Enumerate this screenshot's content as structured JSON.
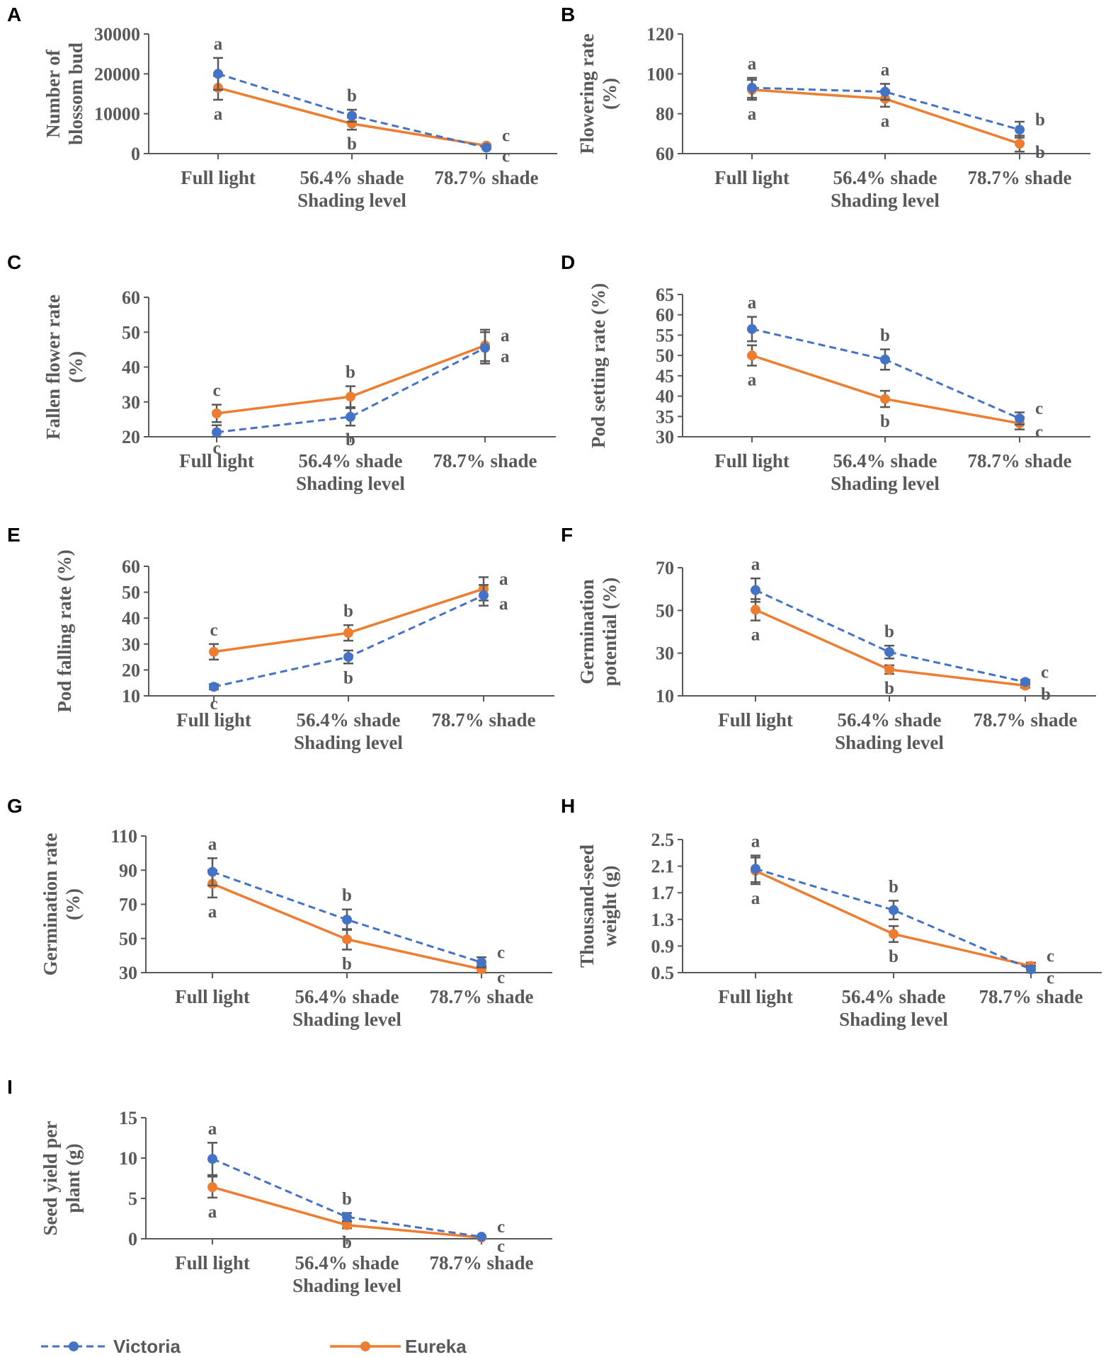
{
  "legend": {
    "victoria": "Victoria",
    "eureka": "Eureka"
  },
  "colors": {
    "victoria": "#4472C4",
    "eureka": "#ED7D31",
    "axis": "#595959",
    "error": "#595959"
  },
  "chart_data": [
    {
      "panel": "A",
      "type": "line",
      "ylabel": [
        "Number of",
        "blossom bud"
      ],
      "xlabel": "Shading level",
      "categories": [
        "Full light",
        "56.4% shade",
        "78.7% shade"
      ],
      "ylim": [
        0,
        30000
      ],
      "yticks": [
        0,
        10000,
        20000,
        30000
      ],
      "ytick_labels": [
        "0",
        "10000",
        "20000",
        "30000"
      ],
      "series": [
        {
          "name": "Victoria",
          "values": [
            20000,
            9500,
            1500
          ],
          "errors": [
            4000,
            1500,
            300
          ],
          "letters": [
            "a",
            "b",
            "c"
          ]
        },
        {
          "name": "Eureka",
          "values": [
            16500,
            7500,
            2000
          ],
          "errors": [
            3000,
            1500,
            300
          ],
          "letters": [
            "a",
            "b",
            "c"
          ]
        }
      ]
    },
    {
      "panel": "B",
      "type": "line",
      "ylabel": [
        "Flowering rate",
        "(%)"
      ],
      "xlabel": "Shading level",
      "categories": [
        "Full light",
        "56.4% shade",
        "78.7% shade"
      ],
      "ylim": [
        60,
        120
      ],
      "yticks": [
        60,
        80,
        100,
        120
      ],
      "ytick_labels": [
        "60",
        "80",
        "100",
        "120"
      ],
      "series": [
        {
          "name": "Victoria",
          "values": [
            93,
            91,
            72
          ],
          "errors": [
            5,
            4,
            4
          ],
          "letters": [
            "a",
            "a",
            "b"
          ]
        },
        {
          "name": "Eureka",
          "values": [
            92,
            87.5,
            65
          ],
          "errors": [
            5,
            4,
            4
          ],
          "letters": [
            "a",
            "a",
            "b"
          ]
        }
      ]
    },
    {
      "panel": "C",
      "type": "line",
      "ylabel": [
        "Fallen flower rate",
        "(%)"
      ],
      "xlabel": "Shading level",
      "categories": [
        "Full light",
        "56.4% shade",
        "78.7% shade"
      ],
      "ylim": [
        20,
        60
      ],
      "yticks": [
        20,
        30,
        40,
        50,
        60
      ],
      "ytick_labels": [
        "20",
        "30",
        "40",
        "50",
        "60"
      ],
      "series": [
        {
          "name": "Victoria",
          "values": [
            21.3,
            25.7,
            45.5
          ],
          "errors": [
            2,
            2.5,
            4.5
          ],
          "letters": [
            "c",
            "b",
            "a"
          ]
        },
        {
          "name": "Eureka",
          "values": [
            26.7,
            31.5,
            46.2
          ],
          "errors": [
            2.5,
            3,
            4.5
          ],
          "letters": [
            "c",
            "b",
            "a"
          ]
        }
      ]
    },
    {
      "panel": "D",
      "type": "line",
      "ylabel": [
        "Pod setting rate (%)"
      ],
      "xlabel": "Shading level",
      "categories": [
        "Full light",
        "56.4% shade",
        "78.7% shade"
      ],
      "ylim": [
        30,
        65
      ],
      "yticks": [
        30,
        35,
        40,
        45,
        50,
        55,
        60,
        65
      ],
      "ytick_labels": [
        "30",
        "35",
        "40",
        "45",
        "50",
        "55",
        "60",
        "65"
      ],
      "series": [
        {
          "name": "Victoria",
          "values": [
            56.5,
            49,
            34.5
          ],
          "errors": [
            3,
            2.5,
            1.5
          ],
          "letters": [
            "a",
            "b",
            "c"
          ]
        },
        {
          "name": "Eureka",
          "values": [
            50,
            39.3,
            33.3
          ],
          "errors": [
            2.5,
            2,
            1.5
          ],
          "letters": [
            "a",
            "b",
            "c"
          ]
        }
      ]
    },
    {
      "panel": "E",
      "type": "line",
      "ylabel": [
        "Pod falling rate (%)"
      ],
      "xlabel": "Shading level",
      "categories": [
        "Full light",
        "56.4% shade",
        "78.7% shade"
      ],
      "ylim": [
        10,
        60
      ],
      "yticks": [
        10,
        20,
        30,
        40,
        50,
        60
      ],
      "ytick_labels": [
        "10",
        "20",
        "30",
        "40",
        "50",
        "60"
      ],
      "series": [
        {
          "name": "Victoria",
          "values": [
            13.5,
            25,
            48.8
          ],
          "errors": [
            1,
            2.5,
            4
          ],
          "letters": [
            "c",
            "b",
            "a"
          ]
        },
        {
          "name": "Eureka",
          "values": [
            27,
            34.3,
            51.3
          ],
          "errors": [
            3,
            3,
            4.5
          ],
          "letters": [
            "c",
            "b",
            "a"
          ]
        }
      ]
    },
    {
      "panel": "F",
      "type": "line",
      "ylabel": [
        "Germination",
        "potential (%)"
      ],
      "xlabel": "Shading level",
      "categories": [
        "Full light",
        "56.4% shade",
        "78.7% shade"
      ],
      "ylim": [
        10,
        70
      ],
      "yticks": [
        10,
        30,
        50,
        70
      ],
      "ytick_labels": [
        "10",
        "30",
        "50",
        "70"
      ],
      "series": [
        {
          "name": "Victoria",
          "values": [
            59.5,
            30.5,
            16.5
          ],
          "errors": [
            5.5,
            3,
            1
          ],
          "letters": [
            "a",
            "b",
            "c"
          ]
        },
        {
          "name": "Eureka",
          "values": [
            50.3,
            22.3,
            14.8
          ],
          "errors": [
            5,
            2,
            1
          ],
          "letters": [
            "a",
            "b",
            "b"
          ]
        }
      ]
    },
    {
      "panel": "G",
      "type": "line",
      "ylabel": [
        "Germination rate",
        "(%)"
      ],
      "xlabel": "Shading level",
      "categories": [
        "Full light",
        "56.4% shade",
        "78.7% shade"
      ],
      "ylim": [
        30,
        110
      ],
      "yticks": [
        30,
        50,
        70,
        90,
        110
      ],
      "ytick_labels": [
        "30",
        "50",
        "70",
        "90",
        "110"
      ],
      "series": [
        {
          "name": "Victoria",
          "values": [
            89,
            61,
            36
          ],
          "errors": [
            8,
            6,
            3
          ],
          "letters": [
            "a",
            "b",
            "c"
          ]
        },
        {
          "name": "Eureka",
          "values": [
            82,
            49.5,
            32
          ],
          "errors": [
            8,
            6,
            2
          ],
          "letters": [
            "a",
            "b",
            "c"
          ]
        }
      ]
    },
    {
      "panel": "H",
      "type": "line",
      "ylabel": [
        "Thousand-seed",
        "weight (g)"
      ],
      "xlabel": "Shading level",
      "categories": [
        "Full light",
        "56.4% shade",
        "78.7% shade"
      ],
      "ylim": [
        0.5,
        2.5
      ],
      "yticks": [
        0.5,
        0.9,
        1.3,
        1.7,
        2.1,
        2.5
      ],
      "ytick_labels": [
        "0.5",
        "0.9",
        "1.3",
        "1.7",
        "2.1",
        "2.5"
      ],
      "series": [
        {
          "name": "Victoria",
          "values": [
            2.06,
            1.44,
            0.55
          ],
          "errors": [
            0.2,
            0.14,
            0.05
          ],
          "letters": [
            "a",
            "b",
            "c"
          ]
        },
        {
          "name": "Eureka",
          "values": [
            2.03,
            1.08,
            0.6
          ],
          "errors": [
            0.2,
            0.12,
            0.05
          ],
          "letters": [
            "a",
            "b",
            "c"
          ]
        }
      ]
    },
    {
      "panel": "I",
      "type": "line",
      "ylabel": [
        "Seed yield per",
        "plant (g)"
      ],
      "xlabel": "Shading level",
      "categories": [
        "Full light",
        "56.4% shade",
        "78.7% shade"
      ],
      "ylim": [
        0,
        15
      ],
      "yticks": [
        0,
        5,
        10,
        15
      ],
      "ytick_labels": [
        "0",
        "5",
        "10",
        "15"
      ],
      "series": [
        {
          "name": "Victoria",
          "values": [
            9.9,
            2.7,
            0.25
          ],
          "errors": [
            2,
            0.5,
            0.1
          ],
          "letters": [
            "a",
            "b",
            "c"
          ]
        },
        {
          "name": "Eureka",
          "values": [
            6.4,
            1.7,
            0.15
          ],
          "errors": [
            1.3,
            0.4,
            0.1
          ],
          "letters": [
            "a",
            "b",
            "c"
          ]
        }
      ]
    }
  ]
}
